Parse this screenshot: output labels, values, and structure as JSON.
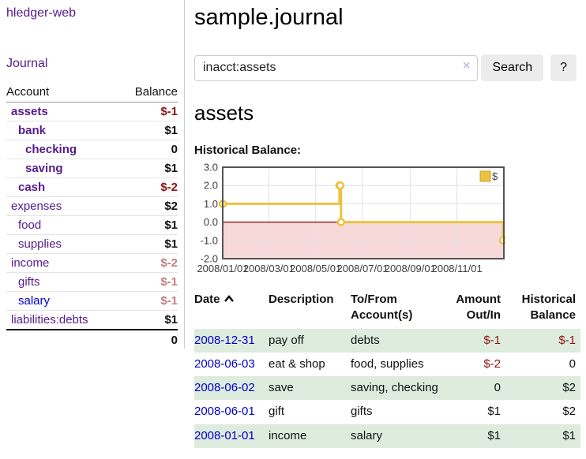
{
  "colors": {
    "link_purple": "#551a8b",
    "link_blue": "#0000cc",
    "negative_strong": "#8b1414",
    "negative_soft": "#c28080",
    "row_stripe_green": "#ddecdd",
    "chart_line_gold": "#edc240"
  },
  "sidebar": {
    "brand": "hledger-web",
    "nav": {
      "journal": "Journal"
    },
    "accounts_table": {
      "headers": {
        "account": "Account",
        "balance": "Balance"
      },
      "rows": [
        {
          "name": "assets",
          "indent": 0,
          "bold": true,
          "balance": "$-1",
          "balance_style": "neg-strong"
        },
        {
          "name": "bank",
          "indent": 1,
          "bold": true,
          "balance": "$1",
          "balance_style": "pos"
        },
        {
          "name": "checking",
          "indent": 2,
          "bold": true,
          "balance": "0",
          "balance_style": "pos"
        },
        {
          "name": "saving",
          "indent": 2,
          "bold": true,
          "balance": "$1",
          "balance_style": "pos"
        },
        {
          "name": "cash",
          "indent": 1,
          "bold": true,
          "balance": "$-2",
          "balance_style": "neg-strong"
        },
        {
          "name": "expenses",
          "indent": 0,
          "bold": false,
          "balance": "$2",
          "balance_style": "pos"
        },
        {
          "name": "food",
          "indent": 1,
          "bold": false,
          "balance": "$1",
          "balance_style": "pos"
        },
        {
          "name": "supplies",
          "indent": 1,
          "bold": false,
          "balance": "$1",
          "balance_style": "pos"
        },
        {
          "name": "income",
          "indent": 0,
          "bold": false,
          "balance": "$-2",
          "balance_style": "neg-soft"
        },
        {
          "name": "gifts",
          "indent": 1,
          "bold": false,
          "balance": "$-1",
          "balance_style": "neg-soft"
        },
        {
          "name": "salary",
          "indent": 1,
          "bold": false,
          "balance": "$-1",
          "balance_style": "neg-soft",
          "link_color": "blue"
        },
        {
          "name": "liabilities:debts",
          "indent": 0,
          "bold": false,
          "balance": "$1",
          "balance_style": "pos"
        }
      ],
      "total": "0"
    }
  },
  "header": {
    "title": "sample.journal"
  },
  "search": {
    "query": "inacct:assets",
    "clear_icon": "×",
    "button": "Search",
    "help_button": "?"
  },
  "account_page": {
    "title": "assets",
    "chart_label": "Historical Balance:"
  },
  "chart_data": {
    "type": "line",
    "step": true,
    "x_range": [
      "2008-01-01",
      "2009-01-01"
    ],
    "ylim": [
      -2,
      3
    ],
    "y_ticks": [
      "3.0",
      "2.0",
      "1.0",
      "0.0",
      "-1.0",
      "-2.0"
    ],
    "x_ticks": [
      {
        "date": "2008-01-01",
        "label": "2008/01/01"
      },
      {
        "date": "2008-03-01",
        "label": "2008/03/01"
      },
      {
        "date": "2008-05-01",
        "label": "2008/05/01"
      },
      {
        "date": "2008-07-01",
        "label": "2008/07/01"
      },
      {
        "date": "2008-09-01",
        "label": "2008/09/01"
      },
      {
        "date": "2008-11-01",
        "label": "2008/11/01"
      }
    ],
    "series": [
      {
        "name": "$",
        "color": "#edc240",
        "data": [
          {
            "x": "2008-01-01",
            "y": 1
          },
          {
            "x": "2008-06-01",
            "y": 2
          },
          {
            "x": "2008-06-02",
            "y": 2
          },
          {
            "x": "2008-06-03",
            "y": 0
          },
          {
            "x": "2008-12-31",
            "y": -1
          }
        ]
      }
    ],
    "grid": true,
    "legend_position": "top-right",
    "negative_region_color": "#f8d9d9",
    "zero_line_color": "#8b0000",
    "border_color": "#545454",
    "grid_color": "#e0e0e0",
    "tick_label_color": "#3c3c3c"
  },
  "register_table": {
    "headers": {
      "date": "Date",
      "description": "Description",
      "accounts": "To/From Account(s)",
      "amount": "Amount Out/In",
      "balance": "Historical Balance"
    },
    "rows": [
      {
        "date": "2008-12-31",
        "description": "pay off",
        "accounts": "debts",
        "amount": "$-1",
        "balance": "$-1"
      },
      {
        "date": "2008-06-03",
        "description": "eat & shop",
        "accounts": "food, supplies",
        "amount": "$-2",
        "balance": "0"
      },
      {
        "date": "2008-06-02",
        "description": "save",
        "accounts": "saving, checking",
        "amount": "0",
        "balance": "$2"
      },
      {
        "date": "2008-06-01",
        "description": "gift",
        "accounts": "gifts",
        "amount": "$1",
        "balance": "$2"
      },
      {
        "date": "2008-01-01",
        "description": "income",
        "accounts": "salary",
        "amount": "$1",
        "balance": "$1"
      }
    ]
  }
}
